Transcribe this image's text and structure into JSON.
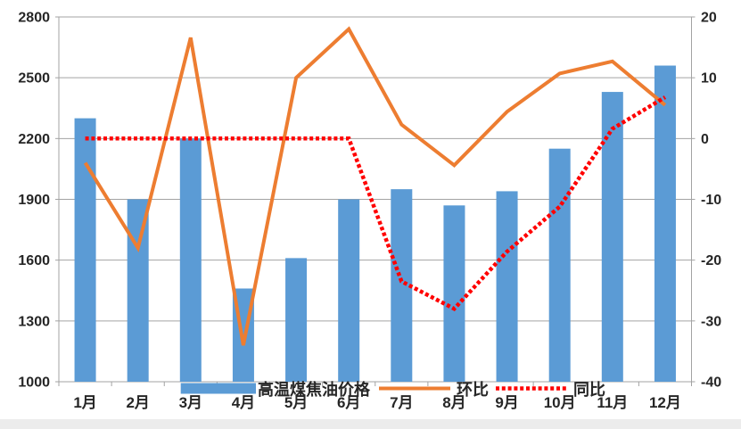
{
  "chart_data": {
    "type": "combo",
    "title": "",
    "categories": [
      "1月",
      "2月",
      "3月",
      "4月",
      "5月",
      "6月",
      "7月",
      "8月",
      "9月",
      "10月",
      "11月",
      "12月"
    ],
    "series": [
      {
        "name": "高温煤焦油价格",
        "type": "bar",
        "axis": "left",
        "color": "#5B9BD5",
        "values": [
          2300,
          1900,
          2200,
          1460,
          1610,
          1900,
          1950,
          1870,
          1940,
          2150,
          2430,
          2560
        ]
      },
      {
        "name": "环比",
        "type": "line",
        "style": "solid",
        "axis": "right",
        "color": "#ED7D31",
        "values": [
          -4,
          -18,
          16.6,
          -34,
          10,
          18,
          2.3,
          -4.4,
          4.4,
          10.7,
          12.7,
          5.5
        ]
      },
      {
        "name": "同比",
        "type": "line",
        "style": "dotted",
        "axis": "right",
        "color": "#FF0000",
        "values": [
          0,
          0,
          0,
          0,
          0,
          0,
          -23.5,
          -28,
          -18.6,
          -11.2,
          1.6,
          6.8
        ]
      }
    ],
    "left_axis": {
      "min": 1000,
      "max": 2800,
      "ticks": [
        2800,
        2500,
        2200,
        1900,
        1600,
        1300,
        1000
      ]
    },
    "right_axis": {
      "min": -40,
      "max": 20,
      "ticks": [
        20,
        10,
        0,
        -10,
        -20,
        -30,
        -40
      ]
    },
    "grid": true,
    "legend_position": "bottom-inside"
  },
  "legend": {
    "items": [
      {
        "label": "高温煤焦油价格",
        "swatch": "thick-bar",
        "color": "#5B9BD5"
      },
      {
        "label": "环比",
        "swatch": "line",
        "color": "#ED7D31"
      },
      {
        "label": "同比",
        "swatch": "dotted-line",
        "color": "#FF0000"
      }
    ]
  },
  "colors": {
    "bar": "#5B9BD5",
    "line_mom": "#ED7D31",
    "line_yoy": "#FF0000",
    "grid": "#a3a3a3",
    "label": "#262626",
    "background": "#ffffff"
  }
}
